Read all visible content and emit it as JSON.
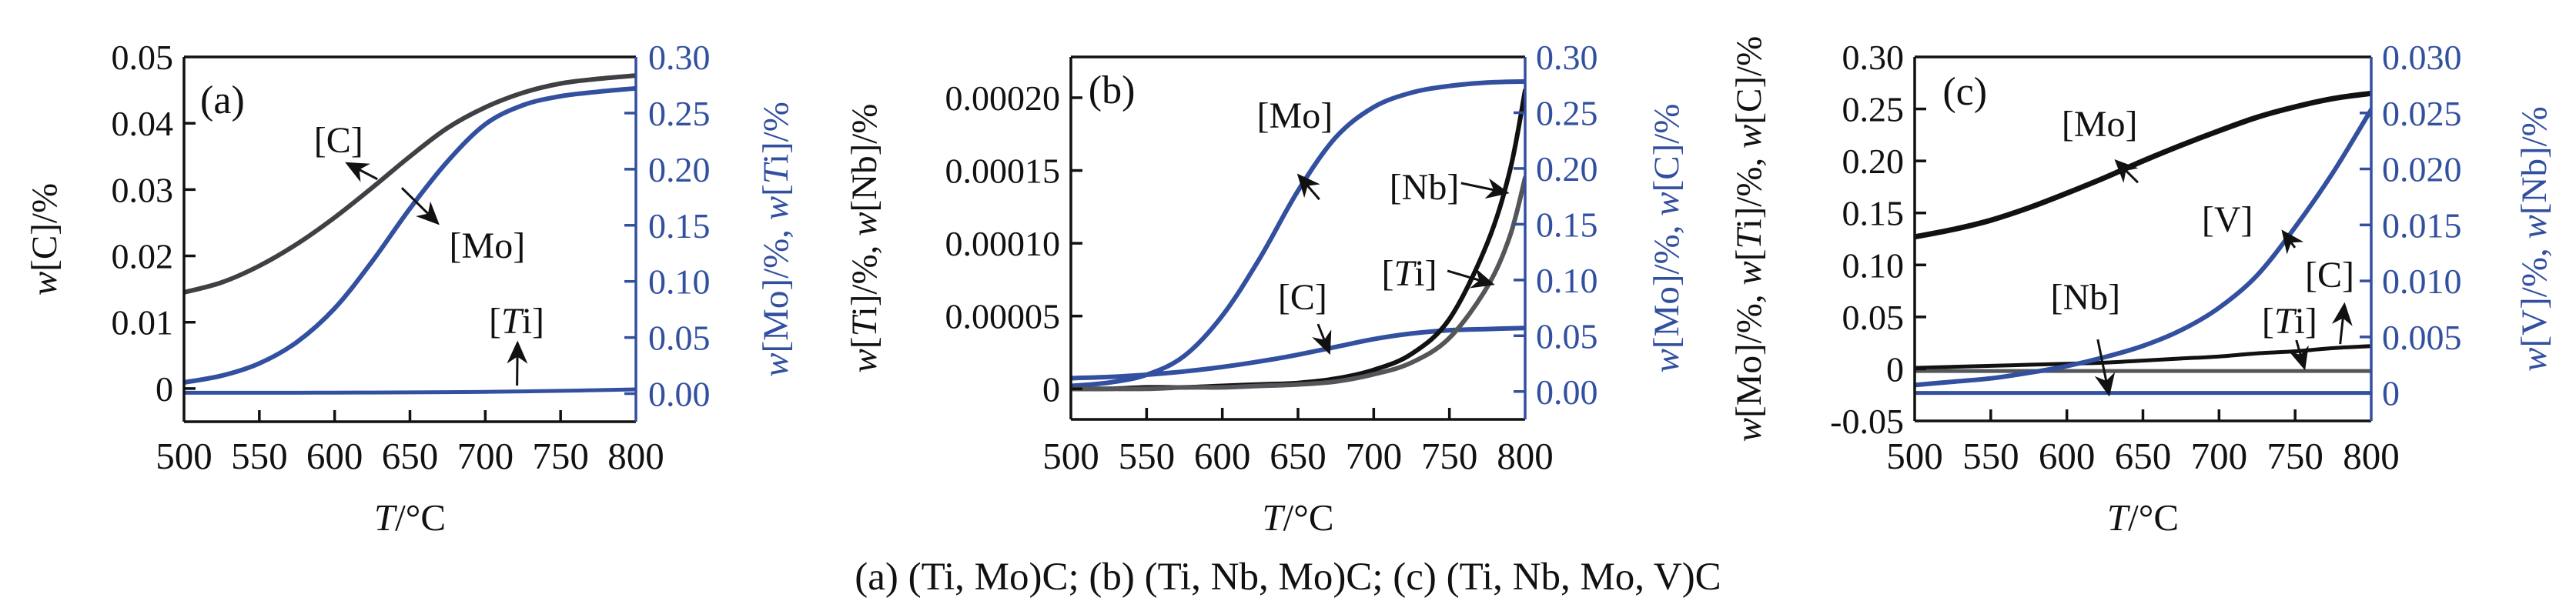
{
  "figure": {
    "caption": "(a) (Ti, Mo)C; (b) (Ti, Nb, Mo)C; (c) (Ti, Nb, Mo, V)C",
    "background": "#ffffff",
    "colors": {
      "accent_blue": "#32509f",
      "curve_black": "#111111",
      "curve_dark_gray": "#3f4044",
      "curve_mid_gray": "#55565a"
    }
  },
  "chart_data": [
    {
      "id": "a",
      "type": "line",
      "panel_label": "(a)",
      "x_axis": {
        "label": "T/°C",
        "min": 500,
        "max": 800,
        "tick_marks": [
          550,
          600,
          650,
          700,
          750
        ],
        "tick_labels": [
          [
            500,
            "500"
          ],
          [
            550,
            "550"
          ],
          [
            600,
            "600"
          ],
          [
            650,
            "650"
          ],
          [
            700,
            "700"
          ],
          [
            750,
            "750"
          ],
          [
            800,
            "800"
          ]
        ]
      },
      "left_axis": {
        "title": "w[C]/%",
        "color": "#111111",
        "min": -0.005,
        "max": 0.05,
        "tick_marks": [
          0.04,
          0.03,
          0.02,
          0.01,
          0
        ],
        "tick_labels": [
          [
            0.05,
            "0.05"
          ],
          [
            0.04,
            "0.04"
          ],
          [
            0.03,
            "0.03"
          ],
          [
            0.02,
            "0.02"
          ],
          [
            0.01,
            "0.01"
          ],
          [
            0,
            "0"
          ]
        ]
      },
      "right_axis": {
        "title": "w[Mo]/%, w[Ti]/%",
        "color": "#32509f",
        "min": -0.025,
        "max": 0.3,
        "tick_marks": [
          0.25,
          0.2,
          0.15,
          0.1,
          0.05,
          0
        ],
        "tick_labels": [
          [
            0.3,
            "0.30"
          ],
          [
            0.25,
            "0.25"
          ],
          [
            0.2,
            "0.20"
          ],
          [
            0.15,
            "0.15"
          ],
          [
            0.1,
            "0.10"
          ],
          [
            0.05,
            "0.05"
          ],
          [
            0,
            "0.00"
          ]
        ]
      },
      "series": [
        {
          "name": "C",
          "axis": "left",
          "color": "#3f4044",
          "width": 6,
          "x": [
            500,
            525,
            550,
            575,
            600,
            625,
            650,
            675,
            700,
            725,
            750,
            775,
            800
          ],
          "y": [
            0.0145,
            0.016,
            0.0185,
            0.0218,
            0.0258,
            0.0303,
            0.035,
            0.0393,
            0.0424,
            0.0446,
            0.046,
            0.0467,
            0.0472
          ]
        },
        {
          "name": "Mo",
          "axis": "right",
          "color": "#32509f",
          "width": 6,
          "x": [
            500,
            525,
            550,
            575,
            600,
            625,
            650,
            675,
            700,
            725,
            750,
            775,
            800
          ],
          "y": [
            0.01,
            0.016,
            0.027,
            0.046,
            0.076,
            0.118,
            0.165,
            0.207,
            0.24,
            0.257,
            0.265,
            0.269,
            0.272
          ]
        },
        {
          "name": "Ti",
          "axis": "right",
          "color": "#32509f",
          "width": 5,
          "x": [
            500,
            525,
            550,
            575,
            600,
            625,
            650,
            675,
            700,
            725,
            750,
            775,
            800
          ],
          "y": [
            0.0008,
            0.0008,
            0.0008,
            0.0008,
            0.0009,
            0.001,
            0.0011,
            0.0013,
            0.0016,
            0.002,
            0.0025,
            0.0031,
            0.0038
          ]
        }
      ],
      "annotations": [
        {
          "text": "(a)",
          "fx": 0.085,
          "fy": 0.118,
          "size": 52
        },
        {
          "text": "[C]",
          "fx": 0.342,
          "fy": 0.228,
          "size": 48
        },
        {
          "text": "[Mo]",
          "fx": 0.671,
          "fy": 0.517,
          "size": 48
        },
        {
          "text": "[Ti]",
          "fx": 0.736,
          "fy": 0.724,
          "size": 48
        }
      ],
      "arrows": [
        {
          "x1": 0.428,
          "y1": 0.335,
          "x2": 0.363,
          "y2": 0.293
        },
        {
          "x1": 0.482,
          "y1": 0.359,
          "x2": 0.56,
          "y2": 0.454
        },
        {
          "x1": 0.737,
          "y1": 0.901,
          "x2": 0.738,
          "y2": 0.787
        }
      ]
    },
    {
      "id": "b",
      "type": "line",
      "panel_label": "(b)",
      "x_axis": {
        "label": "T/°C",
        "min": 500,
        "max": 800,
        "tick_marks": [
          550,
          600,
          650,
          700,
          750
        ],
        "tick_labels": [
          [
            500,
            "500"
          ],
          [
            550,
            "550"
          ],
          [
            600,
            "600"
          ],
          [
            650,
            "650"
          ],
          [
            700,
            "700"
          ],
          [
            750,
            "750"
          ],
          [
            800,
            "800"
          ]
        ]
      },
      "left_axis": {
        "title": "w[Ti]/%, w[Nb]/%",
        "color": "#111111",
        "min": -2.1e-05,
        "max": 0.000228,
        "tick_marks": [
          0.0002,
          0.00015,
          0.0001,
          5e-05,
          0
        ],
        "tick_labels": [
          [
            0.0002,
            "0.00020"
          ],
          [
            0.00015,
            "0.00015"
          ],
          [
            0.0001,
            "0.00010"
          ],
          [
            5e-05,
            "0.00005"
          ],
          [
            0,
            "0"
          ]
        ]
      },
      "right_axis": {
        "title": "w[Mo]/%, w[C]/%",
        "color": "#32509f",
        "min": -0.025,
        "max": 0.3,
        "tick_marks": [
          0.25,
          0.2,
          0.15,
          0.1,
          0.05,
          0
        ],
        "tick_labels": [
          [
            0.3,
            "0.30"
          ],
          [
            0.25,
            "0.25"
          ],
          [
            0.2,
            "0.20"
          ],
          [
            0.15,
            "0.15"
          ],
          [
            0.1,
            "0.10"
          ],
          [
            0.05,
            "0.05"
          ],
          [
            0,
            "0.00"
          ]
        ]
      },
      "series": [
        {
          "name": "Mo",
          "axis": "right",
          "color": "#32509f",
          "width": 6,
          "x": [
            500,
            525,
            550,
            575,
            600,
            625,
            650,
            675,
            700,
            725,
            750,
            775,
            800
          ],
          "y": [
            0.005,
            0.008,
            0.015,
            0.032,
            0.068,
            0.12,
            0.18,
            0.228,
            0.255,
            0.268,
            0.274,
            0.277,
            0.278
          ]
        },
        {
          "name": "C",
          "axis": "right",
          "color": "#32509f",
          "width": 6,
          "x": [
            500,
            525,
            550,
            575,
            600,
            625,
            650,
            675,
            700,
            725,
            750,
            775,
            800
          ],
          "y": [
            0.012,
            0.013,
            0.015,
            0.018,
            0.022,
            0.027,
            0.033,
            0.04,
            0.047,
            0.052,
            0.055,
            0.056,
            0.057
          ]
        },
        {
          "name": "Nb",
          "axis": "left",
          "color": "#111111",
          "width": 6,
          "x": [
            500,
            525,
            550,
            575,
            600,
            625,
            650,
            675,
            700,
            725,
            750,
            775,
            790,
            800
          ],
          "y": [
            0.0,
            0.0,
            1e-06,
            1e-06,
            2e-06,
            3e-06,
            4e-06,
            7e-06,
            1.3e-05,
            2.4e-05,
            4.8e-05,
            0.0001,
            0.00015,
            0.000205
          ]
        },
        {
          "name": "Ti",
          "axis": "left",
          "color": "#55565a",
          "width": 6,
          "x": [
            500,
            525,
            550,
            575,
            600,
            625,
            650,
            675,
            700,
            725,
            750,
            775,
            790,
            800
          ],
          "y": [
            0.0,
            0.0,
            0.0,
            1e-06,
            1e-06,
            2e-06,
            3e-06,
            5e-06,
            1e-05,
            1.8e-05,
            3.5e-05,
            7e-05,
            0.000105,
            0.000145
          ]
        }
      ],
      "annotations": [
        {
          "text": "(b)",
          "fx": 0.09,
          "fy": 0.091,
          "size": 52
        },
        {
          "text": "[Mo]",
          "fx": 0.493,
          "fy": 0.161,
          "size": 48
        },
        {
          "text": "[Nb]",
          "fx": 0.778,
          "fy": 0.359,
          "size": 48
        },
        {
          "text": "[C]",
          "fx": 0.51,
          "fy": 0.662,
          "size": 48
        },
        {
          "text": "[Ti]",
          "fx": 0.745,
          "fy": 0.597,
          "size": 48
        }
      ],
      "arrows": [
        {
          "x1": 0.547,
          "y1": 0.393,
          "x2": 0.503,
          "y2": 0.329
        },
        {
          "x1": 0.859,
          "y1": 0.348,
          "x2": 0.958,
          "y2": 0.374
        },
        {
          "x1": 0.544,
          "y1": 0.737,
          "x2": 0.568,
          "y2": 0.813
        },
        {
          "x1": 0.829,
          "y1": 0.59,
          "x2": 0.926,
          "y2": 0.626
        }
      ]
    },
    {
      "id": "c",
      "type": "line",
      "panel_label": "(c)",
      "x_axis": {
        "label": "T/°C",
        "min": 500,
        "max": 800,
        "tick_marks": [
          550,
          600,
          650,
          700,
          750
        ],
        "tick_labels": [
          [
            500,
            "500"
          ],
          [
            550,
            "550"
          ],
          [
            600,
            "600"
          ],
          [
            650,
            "650"
          ],
          [
            700,
            "700"
          ],
          [
            750,
            "750"
          ],
          [
            800,
            "800"
          ]
        ]
      },
      "left_axis": {
        "title": "w[Mo]/%, w[Ti]/%, w[C]/%",
        "color": "#111111",
        "min": -0.05,
        "max": 0.3,
        "tick_marks": [
          0.25,
          0.2,
          0.15,
          0.1,
          0.05,
          0
        ],
        "tick_labels": [
          [
            0.3,
            "0.30"
          ],
          [
            0.25,
            "0.25"
          ],
          [
            0.2,
            "0.20"
          ],
          [
            0.15,
            "0.15"
          ],
          [
            0.1,
            "0.10"
          ],
          [
            0.05,
            "0.05"
          ],
          [
            0,
            "0"
          ],
          [
            -0.05,
            "-0.05"
          ]
        ]
      },
      "right_axis": {
        "title": "w[V]/%, w[Nb]/%",
        "color": "#32509f",
        "min": -0.0025,
        "max": 0.03,
        "tick_marks": [
          0.025,
          0.02,
          0.015,
          0.01,
          0.005,
          0
        ],
        "tick_labels": [
          [
            0.03,
            "0.030"
          ],
          [
            0.025,
            "0.025"
          ],
          [
            0.02,
            "0.020"
          ],
          [
            0.015,
            "0.015"
          ],
          [
            0.01,
            "0.010"
          ],
          [
            0.005,
            "0.005"
          ],
          [
            0,
            "0"
          ]
        ]
      },
      "series": [
        {
          "name": "Mo",
          "axis": "left",
          "color": "#111111",
          "width": 7,
          "x": [
            500,
            525,
            550,
            575,
            600,
            625,
            650,
            675,
            700,
            725,
            750,
            775,
            800
          ],
          "y": [
            0.127,
            0.134,
            0.143,
            0.155,
            0.169,
            0.184,
            0.2,
            0.215,
            0.229,
            0.242,
            0.252,
            0.26,
            0.265
          ]
        },
        {
          "name": "C",
          "axis": "left",
          "color": "#111111",
          "width": 5,
          "x": [
            500,
            525,
            550,
            575,
            600,
            625,
            650,
            675,
            700,
            725,
            750,
            775,
            800
          ],
          "y": [
            0.001,
            0.002,
            0.003,
            0.004,
            0.005,
            0.006,
            0.008,
            0.01,
            0.012,
            0.015,
            0.017,
            0.02,
            0.022
          ]
        },
        {
          "name": "Ti",
          "axis": "left",
          "color": "#55565a",
          "width": 5,
          "x": [
            500,
            650,
            800
          ],
          "y": [
            -0.002,
            -0.002,
            -0.002
          ]
        },
        {
          "name": "Nb",
          "axis": "right",
          "color": "#32509f",
          "width": 5,
          "x": [
            500,
            650,
            800
          ],
          "y": [
            0.0,
            0.0,
            0.0
          ]
        },
        {
          "name": "V",
          "axis": "right",
          "color": "#32509f",
          "width": 6,
          "x": [
            500,
            525,
            550,
            575,
            600,
            625,
            650,
            675,
            700,
            725,
            750,
            775,
            800
          ],
          "y": [
            0.0007,
            0.001,
            0.0013,
            0.0018,
            0.0024,
            0.0032,
            0.0042,
            0.0056,
            0.0076,
            0.0105,
            0.0148,
            0.0197,
            0.0253
          ]
        }
      ],
      "annotations": [
        {
          "text": "(c)",
          "fx": 0.11,
          "fy": 0.095,
          "size": 52
        },
        {
          "text": "[Mo]",
          "fx": 0.405,
          "fy": 0.184,
          "size": 48
        },
        {
          "text": "[V]",
          "fx": 0.685,
          "fy": 0.446,
          "size": 48
        },
        {
          "text": "[Nb]",
          "fx": 0.374,
          "fy": 0.66,
          "size": 48
        },
        {
          "text": "[C]",
          "fx": 0.909,
          "fy": 0.598,
          "size": 48
        },
        {
          "text": "[Ti]",
          "fx": 0.821,
          "fy": 0.725,
          "size": 48
        }
      ],
      "arrows": [
        {
          "x1": 0.489,
          "y1": 0.345,
          "x2": 0.443,
          "y2": 0.288
        },
        {
          "x1": 0.833,
          "y1": 0.524,
          "x2": 0.808,
          "y2": 0.482
        },
        {
          "x1": 0.401,
          "y1": 0.776,
          "x2": 0.425,
          "y2": 0.924
        },
        {
          "x1": 0.932,
          "y1": 0.789,
          "x2": 0.941,
          "y2": 0.683
        },
        {
          "x1": 0.836,
          "y1": 0.778,
          "x2": 0.853,
          "y2": 0.852
        }
      ]
    }
  ]
}
